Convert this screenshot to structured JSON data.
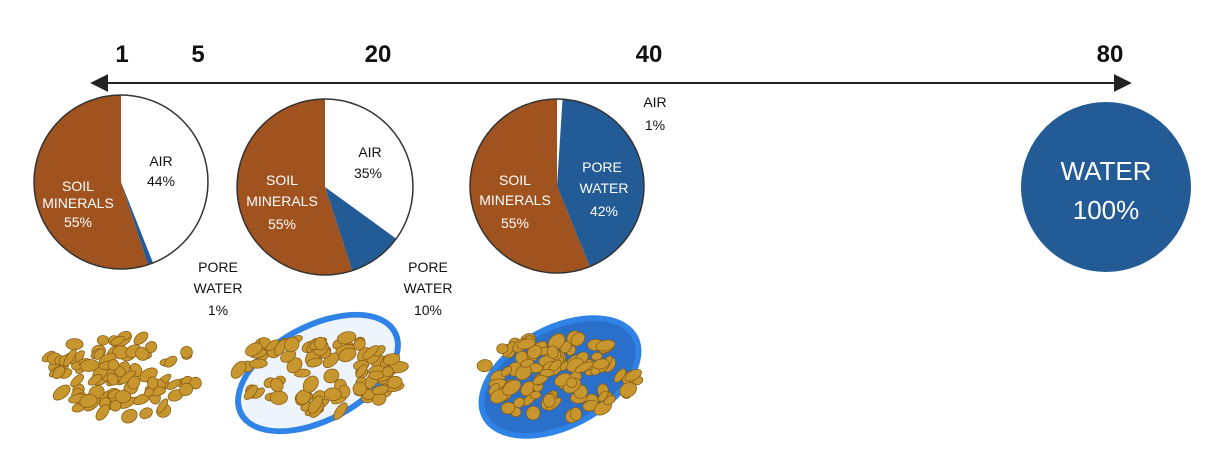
{
  "axis": {
    "ticks": [
      "1",
      "5",
      "20",
      "40",
      "80"
    ]
  },
  "colors": {
    "soil": "#a0521f",
    "water": "#225b95",
    "air": "#ffffff",
    "grain": "#c8962f",
    "grain_dark": "#8a5f14",
    "film": "#2f82e6"
  },
  "pies": [
    {
      "minerals": {
        "line1": "SOIL",
        "line2": "MINERALS",
        "pct": "55%"
      },
      "air": {
        "line1": "AIR",
        "pct": "44%"
      },
      "water": {
        "line1": "PORE",
        "line2": "WATER",
        "pct": "1%"
      }
    },
    {
      "minerals": {
        "line1": "SOIL",
        "line2": "MINERALS",
        "pct": "55%"
      },
      "air": {
        "line1": "AIR",
        "pct": "35%"
      },
      "water": {
        "line1": "PORE",
        "line2": "WATER",
        "pct": "10%"
      }
    },
    {
      "minerals": {
        "line1": "SOIL",
        "line2": "MINERALS",
        "pct": "55%"
      },
      "air": {
        "line1": "AIR",
        "pct": "1%"
      },
      "water": {
        "line1": "PORE",
        "line2": "WATER",
        "pct": "42%"
      }
    }
  ],
  "water_circle": {
    "line1": "WATER",
    "pct": "100%"
  },
  "chart_data": [
    {
      "type": "pie",
      "categories": [
        "SOIL MINERALS",
        "AIR",
        "PORE WATER"
      ],
      "values": [
        55,
        44,
        1
      ]
    },
    {
      "type": "pie",
      "categories": [
        "SOIL MINERALS",
        "AIR",
        "PORE WATER"
      ],
      "values": [
        55,
        35,
        10
      ]
    },
    {
      "type": "pie",
      "categories": [
        "SOIL MINERALS",
        "PORE WATER",
        "AIR"
      ],
      "values": [
        55,
        42,
        1
      ]
    },
    {
      "type": "pie",
      "categories": [
        "WATER"
      ],
      "values": [
        100
      ]
    }
  ]
}
